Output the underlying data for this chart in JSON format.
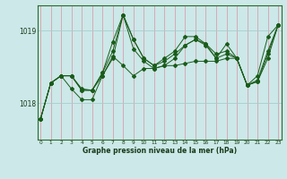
{
  "title": "Graphe pression niveau de la mer (hPa)",
  "bg_color": "#cce8e8",
  "line_color": "#1a5c1a",
  "ylim": [
    1017.5,
    1019.35
  ],
  "xlim": [
    -0.3,
    23.3
  ],
  "yticks": [
    1018,
    1019
  ],
  "ytick_labels": [
    "1018",
    "1019"
  ],
  "xticks": [
    0,
    1,
    2,
    3,
    4,
    5,
    6,
    7,
    8,
    9,
    10,
    11,
    12,
    13,
    14,
    15,
    16,
    17,
    18,
    19,
    20,
    21,
    22,
    23
  ],
  "series": [
    [
      1017.78,
      1018.28,
      1018.38,
      1018.38,
      1018.18,
      1018.18,
      1018.38,
      1018.65,
      1018.52,
      1018.38,
      1018.48,
      1018.48,
      1018.52,
      1018.52,
      1018.55,
      1018.58,
      1018.58,
      1018.58,
      1018.62,
      1018.62,
      1018.25,
      1018.3,
      1018.62,
      1019.08
    ],
    [
      1017.78,
      1018.28,
      1018.38,
      1018.38,
      1018.2,
      1018.18,
      1018.42,
      1018.85,
      1019.22,
      1018.88,
      1018.62,
      1018.52,
      1018.58,
      1018.68,
      1018.8,
      1018.88,
      1018.82,
      1018.68,
      1018.72,
      1018.62,
      1018.25,
      1018.3,
      1018.68,
      1019.08
    ],
    [
      1017.78,
      1018.28,
      1018.38,
      1018.2,
      1018.05,
      1018.05,
      1018.38,
      1018.62,
      1019.22,
      1018.75,
      1018.58,
      1018.48,
      1018.52,
      1018.62,
      1018.8,
      1018.88,
      1018.8,
      1018.62,
      1018.68,
      1018.62,
      1018.25,
      1018.32,
      1018.72,
      1019.08
    ],
    [
      1017.78,
      1018.28,
      1018.38,
      1018.38,
      1018.18,
      1018.18,
      1018.42,
      1018.72,
      1019.22,
      1018.88,
      1018.62,
      1018.52,
      1018.62,
      1018.72,
      1018.92,
      1018.92,
      1018.82,
      1018.62,
      1018.82,
      1018.62,
      1018.25,
      1018.38,
      1018.92,
      1019.08
    ]
  ],
  "vgrid_color": "#d8a0b0",
  "hgrid_color": "#a8cccc",
  "spine_color": "#2a6a2a",
  "tick_color": "#1a3a1a",
  "xlabel_color": "#1a3a1a",
  "title_fontsize": 5.5,
  "xtick_fontsize": 4.2,
  "ytick_fontsize": 5.5
}
